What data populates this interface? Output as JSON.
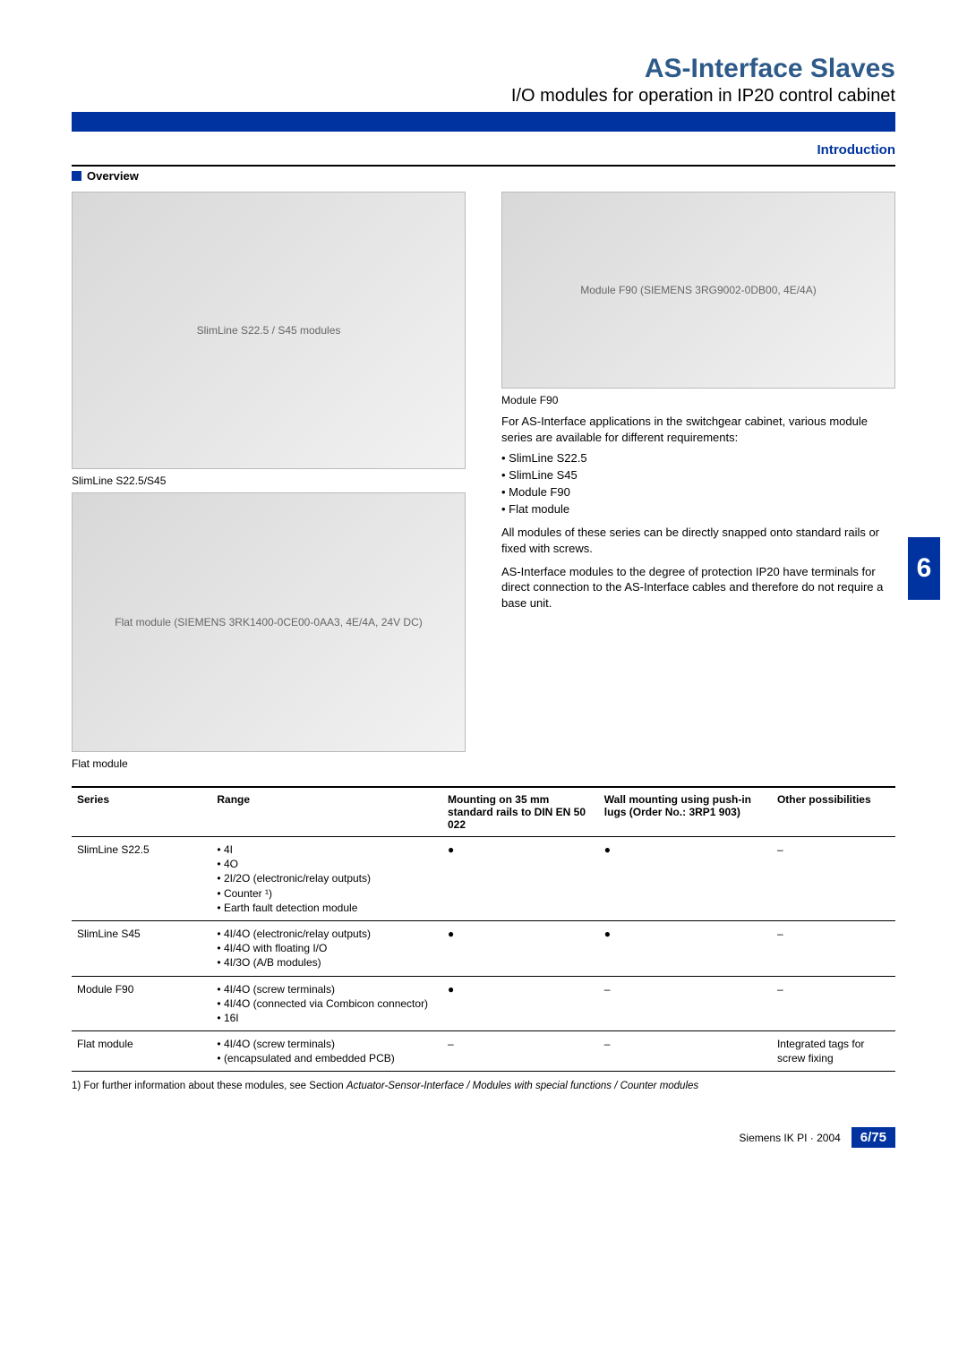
{
  "header": {
    "title": "AS-Interface Slaves",
    "subtitle": "I/O modules for operation in IP20 control cabinet"
  },
  "intro_label": "Introduction",
  "overview_label": "Overview",
  "side_tab": "6",
  "images": {
    "img1_caption": "SlimLine S22.5/S45",
    "img1_alt": "SlimLine S22.5 / S45 modules",
    "img2_caption": "Flat  module",
    "img2_alt": "Flat module (SIEMENS 3RK1400-0CE00-0AA3, 4E/4A, 24V DC)",
    "img3_caption": "Module F90",
    "img3_alt": "Module F90 (SIEMENS 3RG9002-0DB00, 4E/4A)"
  },
  "body": {
    "p1": "For AS-Interface applications in the switchgear cabinet, various module series are available for different requirements:",
    "bullets": [
      "SlimLine S22.5",
      "SlimLine S45",
      "Module F90",
      "Flat module"
    ],
    "p2": "All modules of these series can be directly snapped onto standard rails or fixed with screws.",
    "p3": "AS-Interface modules to the degree of protection IP20 have terminals for direct connection to the AS-Interface cables and therefore do not require a base unit."
  },
  "table": {
    "columns": [
      "Series",
      "Range",
      "Mounting on 35 mm standard rails to DIN EN 50 022",
      "Wall mounting using push-in lugs (Order No.: 3RP1 903)",
      "Other possibilities"
    ],
    "col_widths": [
      "17%",
      "28%",
      "19%",
      "21%",
      "15%"
    ],
    "rows": [
      {
        "series": "SlimLine S22.5",
        "range": [
          "4I",
          "4O",
          "2I/2O (electronic/relay outputs)",
          "Counter ¹)",
          "Earth fault detection module"
        ],
        "mount35": "●",
        "wall": "●",
        "other": "–"
      },
      {
        "series": "SlimLine S45",
        "range": [
          "4I/4O (electronic/relay outputs)",
          "4I/4O with floating I/O",
          "4I/3O (A/B modules)"
        ],
        "mount35": "●",
        "wall": "●",
        "other": "–"
      },
      {
        "series": "Module F90",
        "range": [
          "4I/4O (screw terminals)",
          "4I/4O (connected via Combicon connector)",
          "16I"
        ],
        "mount35": "●",
        "wall": "–",
        "other": "–"
      },
      {
        "series": "Flat module",
        "range": [
          "4I/4O (screw terminals)",
          "(encapsulated and embedded PCB)"
        ],
        "mount35": "–",
        "wall": "–",
        "other": "Integrated tags for screw fixing"
      }
    ]
  },
  "footnote": "1) For further information about these modules, see Section Actuator-Sensor-Interface / Modules with special functions / Counter modules",
  "footer": {
    "text": "Siemens IK PI · 2004",
    "page": "6/75"
  }
}
